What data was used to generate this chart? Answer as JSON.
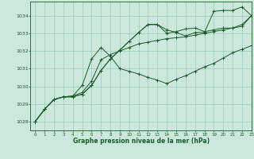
{
  "bg_color": "#cce8dc",
  "grid_color": "#99ccbb",
  "line_color": "#1a5c2a",
  "xlabel": "Graphe pression niveau de la mer (hPa)",
  "ylim": [
    1027.5,
    1034.8
  ],
  "xlim": [
    -0.5,
    23
  ],
  "yticks": [
    1028,
    1029,
    1030,
    1031,
    1032,
    1033,
    1034
  ],
  "xticks": [
    0,
    1,
    2,
    3,
    4,
    5,
    6,
    7,
    8,
    9,
    10,
    11,
    12,
    13,
    14,
    15,
    16,
    17,
    18,
    19,
    20,
    21,
    22,
    23
  ],
  "series": [
    [
      1028.0,
      1028.7,
      1029.25,
      1029.4,
      1029.4,
      1029.55,
      1030.05,
      1030.9,
      1031.55,
      1032.05,
      1032.55,
      1033.05,
      1033.5,
      1033.5,
      1033.2,
      1033.05,
      1032.85,
      1033.05,
      1033.05,
      1034.25,
      1034.3,
      1034.3,
      1034.5,
      1034.0
    ],
    [
      1028.0,
      1028.7,
      1029.25,
      1029.4,
      1029.4,
      1029.55,
      1030.05,
      1030.9,
      1031.55,
      1032.05,
      1032.55,
      1033.05,
      1033.5,
      1033.5,
      1033.0,
      1033.1,
      1033.25,
      1033.3,
      1033.1,
      1033.2,
      1033.3,
      1033.3,
      1033.5,
      1034.0
    ],
    [
      1028.0,
      1028.7,
      1029.25,
      1029.4,
      1029.45,
      1029.65,
      1030.3,
      1031.5,
      1031.8,
      1032.0,
      1032.2,
      1032.4,
      1032.5,
      1032.6,
      1032.7,
      1032.75,
      1032.8,
      1032.9,
      1033.0,
      1033.1,
      1033.2,
      1033.3,
      1033.4,
      1034.0
    ],
    [
      1028.0,
      1028.7,
      1029.25,
      1029.4,
      1029.45,
      1030.05,
      1031.55,
      1032.2,
      1031.7,
      1031.0,
      1030.85,
      1030.7,
      1030.5,
      1030.35,
      1030.15,
      1030.4,
      1030.6,
      1030.85,
      1031.1,
      1031.3,
      1031.6,
      1031.9,
      1032.1,
      1032.3
    ]
  ]
}
